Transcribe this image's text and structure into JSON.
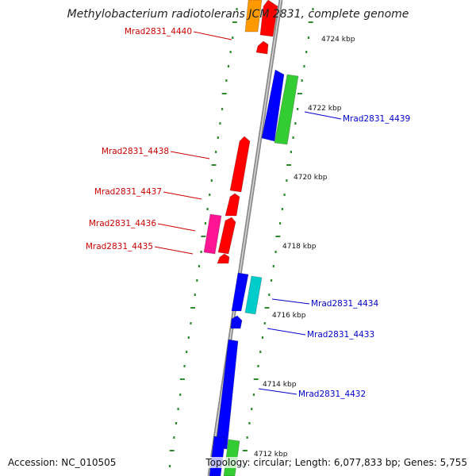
{
  "title": "Methylobacterium radiotolerans JCM 2831, complete genome",
  "footer": {
    "accession": "Accession: NC_010505",
    "summary": "Topology: circular; Length: 6,077,833 bp; Genes: 5,755"
  },
  "colors": {
    "backbone": "#8a8a8a",
    "tick": "#2e8b2e",
    "label_left": "#cc0000",
    "label_right": "#0000cc",
    "red": "#ff0000",
    "blue": "#0000ff",
    "green": "#33cc33",
    "cyan": "#00cccc",
    "pink": "#ff1493",
    "orange": "#ff9900"
  },
  "scale_labels": [
    {
      "kbp": 4724,
      "text": "4724 kbp"
    },
    {
      "kbp": 4722,
      "text": "4722 kbp"
    },
    {
      "kbp": 4720,
      "text": "4720 kbp"
    },
    {
      "kbp": 4718,
      "text": "4718 kbp"
    },
    {
      "kbp": 4716,
      "text": "4716 kbp"
    },
    {
      "kbp": 4714,
      "text": "4714 kbp"
    },
    {
      "kbp": 4712,
      "text": "4712 kbp"
    }
  ],
  "gene_labels": [
    {
      "name": "Mrad2831_4440",
      "side": "left"
    },
    {
      "name": "Mrad2831_4439",
      "side": "right"
    },
    {
      "name": "Mrad2831_4438",
      "side": "left"
    },
    {
      "name": "Mrad2831_4437",
      "side": "left"
    },
    {
      "name": "Mrad2831_4436",
      "side": "left"
    },
    {
      "name": "Mrad2831_4435",
      "side": "left"
    },
    {
      "name": "Mrad2831_4434",
      "side": "right"
    },
    {
      "name": "Mrad2831_4433",
      "side": "right"
    },
    {
      "name": "Mrad2831_4432",
      "side": "right"
    }
  ]
}
